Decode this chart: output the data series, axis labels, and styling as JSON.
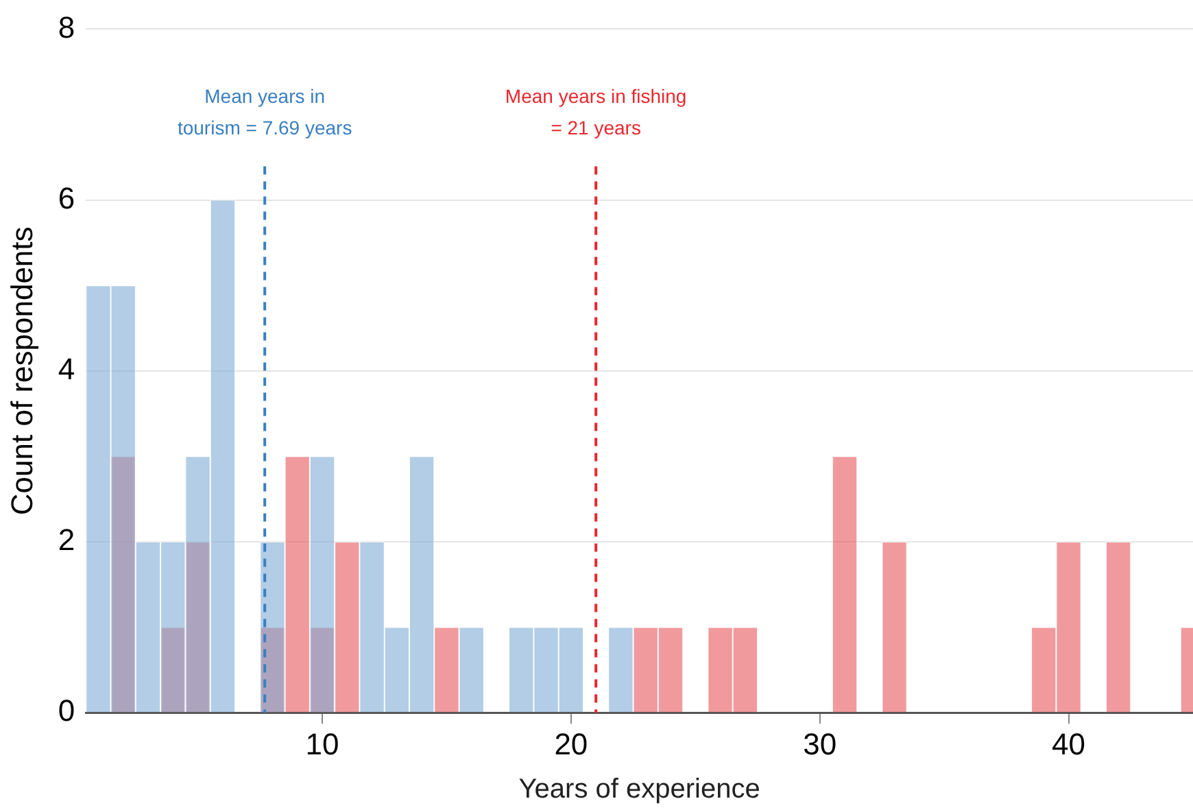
{
  "chart_data": {
    "type": "histogram",
    "xlabel": "Years of experience",
    "ylabel": "Count of respondents",
    "bins": [
      0.5,
      1.5,
      2.5,
      3.5,
      4.5,
      5.5,
      6.5,
      7.5,
      8.5,
      9.5,
      10.5,
      11.5,
      12.5,
      13.5,
      14.5,
      15.5,
      16.5,
      17.5,
      18.5,
      19.5,
      20.5,
      21.5,
      22.5,
      23.5,
      24.5,
      25.5,
      26.5,
      27.5,
      28.5,
      29.5,
      30.5,
      31.5,
      32.5,
      33.5,
      34.5,
      35.5,
      36.5,
      37.5,
      38.5,
      39.5,
      40.5,
      41.5,
      42.5,
      43.5,
      44.5,
      45.5
    ],
    "series": [
      {
        "color": "#7fabd4",
        "values": [
          5,
          5,
          2,
          2,
          3,
          6,
          0,
          2,
          0,
          3,
          0,
          2,
          1,
          3,
          0,
          1,
          0,
          1,
          1,
          1,
          0,
          1,
          0,
          0,
          0,
          0,
          0,
          0,
          0,
          0,
          0,
          0,
          0,
          0,
          0,
          0,
          0,
          0,
          0,
          0,
          0,
          0,
          0,
          0,
          0
        ]
      },
      {
        "color": "#e8575b",
        "values": [
          0,
          3,
          0,
          1,
          2,
          0,
          0,
          1,
          3,
          1,
          2,
          0,
          0,
          0,
          1,
          0,
          0,
          0,
          0,
          0,
          0,
          0,
          1,
          1,
          0,
          1,
          1,
          0,
          0,
          0,
          3,
          0,
          2,
          0,
          0,
          0,
          0,
          0,
          1,
          2,
          0,
          2,
          0,
          0,
          1
        ]
      }
    ],
    "xlim": [
      0.5,
      45
    ],
    "xticks": [
      10,
      20,
      30,
      40
    ],
    "ylim": [
      0,
      8
    ],
    "yticks": [
      0,
      2,
      4,
      6,
      8
    ],
    "grid": "y",
    "ref_lines": [
      {
        "axis": "x",
        "value": 7.69,
        "label": "Mean years in tourism = 7.69 years",
        "color": "#3a7fc1",
        "line_style": "dashed"
      },
      {
        "axis": "x",
        "value": 21,
        "label": "Mean years in fishing = 21 years",
        "color": "#e8282e",
        "line_style": "dashed"
      }
    ]
  }
}
